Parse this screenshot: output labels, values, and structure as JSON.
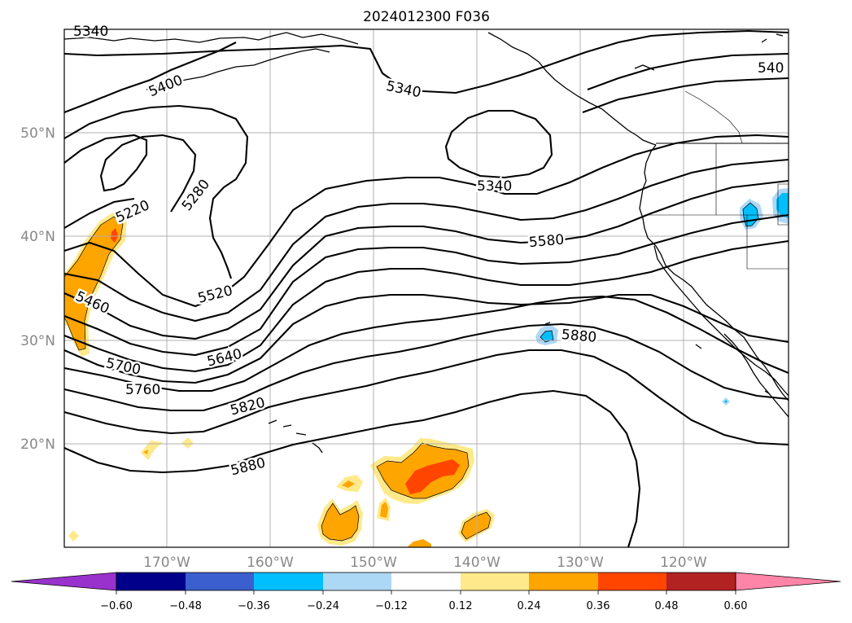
{
  "title": "2024012300 F036",
  "latitude_labels": [
    "20°N",
    "30°N",
    "40°N",
    "50°N"
  ],
  "longitude_labels": [
    "170°W",
    "160°W",
    "150°W",
    "140°W",
    "130°W",
    "120°W"
  ],
  "contour_labels": [
    "5340",
    "5400",
    "5220",
    "5280",
    "5340",
    "5340",
    "540",
    "5580",
    "5460",
    "5520",
    "5640",
    "5700",
    "5760",
    "5820",
    "5880"
  ],
  "colorbar": {
    "tick_labels": [
      "−0.60",
      "−0.48",
      "−0.36",
      "−0.24",
      "−0.12",
      "0.12",
      "0.24",
      "0.36",
      "0.48",
      "0.60"
    ],
    "colors": {
      "under": "#9932cc",
      "bins": [
        "#00008b",
        "#3b5fcf",
        "#00bfff",
        "#add8f5",
        "#ffffff",
        "#ffe98a",
        "#ffa500",
        "#ff4500",
        "#b22222",
        "#ff85a8"
      ],
      "over": "#ff85a8"
    }
  },
  "shading_colors": {
    "light_yellow": "#ffe98a",
    "orange": "#ffa500",
    "red_orange": "#ff4500",
    "light_blue": "#add8f5",
    "blue": "#00bfff"
  }
}
